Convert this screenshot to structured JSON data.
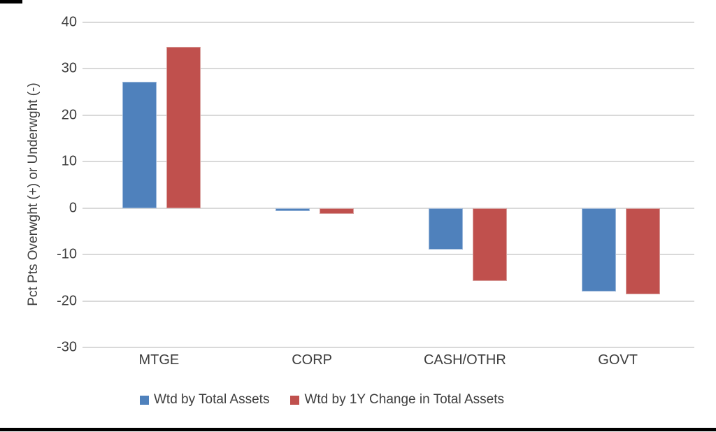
{
  "chart_data": {
    "type": "bar",
    "categories": [
      "MTGE",
      "CORP",
      "CASH/OTHR",
      "GOVT"
    ],
    "series": [
      {
        "name": "Wtd by Total Assets",
        "color": "#4F81BC",
        "border_color": "#9DB9DB",
        "values": [
          27.2,
          -0.7,
          -8.9,
          -18.0
        ]
      },
      {
        "name": "Wtd by 1Y Change in Total Assets",
        "color": "#C0504D",
        "border_color": "#D9A09E",
        "values": [
          34.7,
          -1.2,
          -15.7,
          -18.6
        ]
      }
    ],
    "title": "",
    "xlabel": "",
    "ylabel": "Pct Pts Overwght (+) or Underwght (-)",
    "yticks": [
      40,
      30,
      20,
      10,
      0,
      -10,
      -20,
      -30
    ],
    "ylim": [
      -30,
      40
    ],
    "grid": true,
    "gridline_color": "#D9D9D9",
    "text_color": "#3D3D3D",
    "legend_position": "bottom",
    "background_color": "#FFFFFF",
    "divider_color": "#000000"
  }
}
